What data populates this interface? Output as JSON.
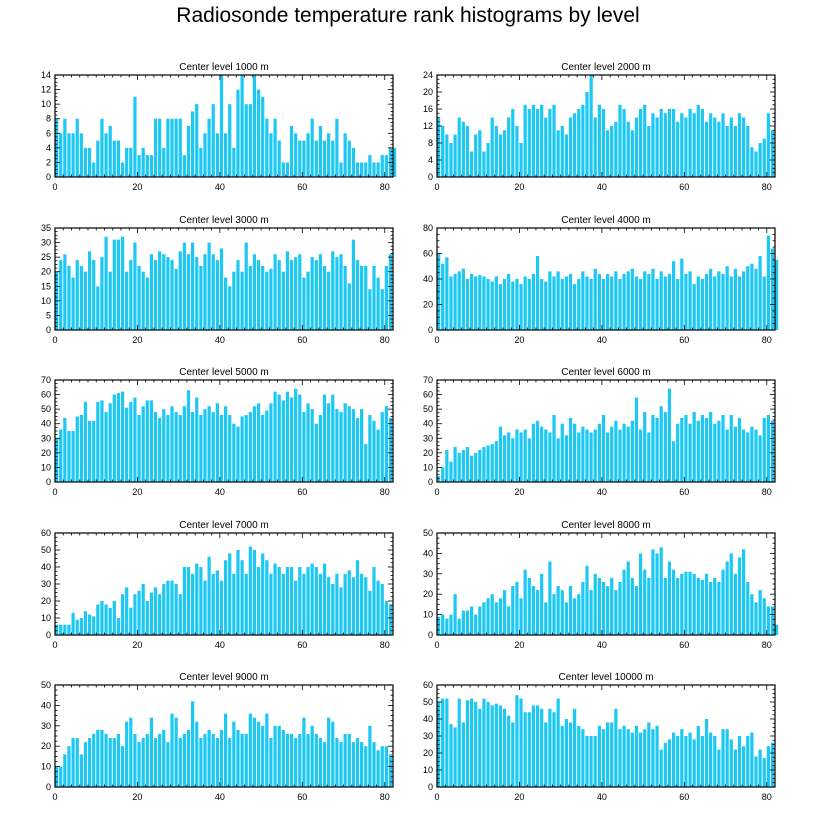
{
  "title": "Radiosonde temperature rank histograms by level",
  "colors": {
    "bar": "#1ec8f5",
    "axis": "#000000",
    "background": "#ffffff"
  },
  "chart_data": [
    {
      "type": "bar",
      "title": "Center level 1000 m",
      "xlim": [
        0,
        82
      ],
      "ylim": [
        0,
        14
      ],
      "xticks": [
        0,
        20,
        40,
        60,
        80
      ],
      "yticks": [
        0,
        2,
        4,
        6,
        8,
        10,
        12,
        14
      ],
      "values": [
        8,
        6,
        8,
        6,
        6,
        8,
        6,
        4,
        4,
        2,
        5,
        8,
        6,
        7,
        5,
        5,
        2,
        4,
        4,
        11,
        3,
        4,
        3,
        3,
        8,
        8,
        4,
        8,
        8,
        8,
        8,
        3,
        7,
        9,
        10,
        4,
        6,
        8,
        10,
        6,
        14,
        6,
        10,
        4,
        12,
        14,
        10,
        10,
        14,
        12,
        11,
        8,
        6,
        8,
        5,
        2,
        2,
        7,
        6,
        5,
        5,
        6,
        8,
        5,
        7,
        5,
        6,
        5,
        8,
        2,
        6,
        5,
        4,
        2,
        2,
        2,
        3,
        2,
        2,
        3,
        3,
        4,
        4
      ]
    },
    {
      "type": "bar",
      "title": "Center level 2000 m",
      "xlim": [
        0,
        82
      ],
      "ylim": [
        0,
        24
      ],
      "xticks": [
        0,
        20,
        40,
        60,
        80
      ],
      "yticks": [
        0,
        4,
        8,
        12,
        16,
        20,
        24
      ],
      "values": [
        14,
        12,
        10,
        8,
        10,
        14,
        13,
        12,
        6,
        10,
        11,
        6,
        8,
        14,
        12,
        10,
        11,
        14,
        16,
        12,
        8,
        17,
        16,
        17,
        16,
        17,
        14,
        16,
        17,
        11,
        12,
        10,
        14,
        15,
        16,
        17,
        20,
        24,
        14,
        17,
        16,
        11,
        12,
        13,
        17,
        16,
        13,
        11,
        14,
        16,
        17,
        12,
        15,
        14,
        16,
        15,
        16,
        16,
        13,
        15,
        14,
        16,
        15,
        17,
        16,
        13,
        15,
        14,
        13,
        15,
        12,
        14,
        12,
        15,
        14,
        12,
        7,
        6,
        8,
        9,
        15,
        11
      ]
    },
    {
      "type": "bar",
      "title": "Center level 3000 m",
      "xlim": [
        0,
        82
      ],
      "ylim": [
        0,
        35
      ],
      "xticks": [
        0,
        20,
        40,
        60,
        80
      ],
      "yticks": [
        0,
        5,
        10,
        15,
        20,
        25,
        30,
        35
      ],
      "values": [
        20,
        24,
        26,
        22,
        18,
        24,
        22,
        20,
        27,
        24,
        15,
        25,
        32,
        20,
        31,
        31,
        32,
        20,
        24,
        30,
        22,
        20,
        18,
        26,
        24,
        27,
        26,
        25,
        24,
        21,
        27,
        30,
        26,
        30,
        25,
        22,
        26,
        30,
        26,
        24,
        28,
        18,
        15,
        20,
        24,
        20,
        30,
        22,
        26,
        24,
        22,
        20,
        21,
        26,
        24,
        20,
        27,
        24,
        25,
        26,
        18,
        20,
        25,
        24,
        26,
        22,
        20,
        27,
        25,
        26,
        22,
        16,
        31,
        24,
        22,
        22,
        14,
        22,
        18,
        14,
        22,
        26
      ]
    },
    {
      "type": "bar",
      "title": "Center level 4000 m",
      "xlim": [
        0,
        82
      ],
      "ylim": [
        0,
        80
      ],
      "xticks": [
        0,
        20,
        40,
        60,
        80
      ],
      "yticks": [
        0,
        20,
        40,
        60,
        80
      ],
      "values": [
        60,
        52,
        57,
        42,
        44,
        46,
        48,
        40,
        44,
        42,
        43,
        42,
        40,
        38,
        42,
        36,
        40,
        44,
        38,
        40,
        36,
        42,
        40,
        44,
        58,
        40,
        38,
        46,
        42,
        46,
        40,
        42,
        44,
        36,
        40,
        46,
        42,
        40,
        48,
        44,
        40,
        44,
        42,
        46,
        40,
        44,
        46,
        48,
        42,
        40,
        46,
        44,
        48,
        40,
        46,
        42,
        44,
        54,
        40,
        56,
        44,
        46,
        36,
        42,
        40,
        44,
        48,
        42,
        46,
        44,
        50,
        42,
        48,
        42,
        46,
        50,
        52,
        48,
        58,
        42,
        74,
        64,
        55
      ]
    },
    {
      "type": "bar",
      "title": "Center level 5000 m",
      "xlim": [
        0,
        82
      ],
      "ylim": [
        0,
        70
      ],
      "xticks": [
        0,
        20,
        40,
        60,
        80
      ],
      "yticks": [
        0,
        10,
        20,
        30,
        40,
        50,
        60,
        70
      ],
      "values": [
        30,
        36,
        44,
        35,
        35,
        45,
        46,
        55,
        42,
        42,
        55,
        56,
        48,
        54,
        60,
        61,
        62,
        51,
        55,
        58,
        46,
        52,
        56,
        56,
        48,
        44,
        50,
        46,
        52,
        48,
        46,
        52,
        63,
        48,
        58,
        46,
        50,
        52,
        48,
        54,
        46,
        52,
        46,
        40,
        38,
        45,
        46,
        48,
        52,
        54,
        46,
        49,
        54,
        62,
        60,
        56,
        62,
        58,
        64,
        60,
        48,
        54,
        50,
        40,
        46,
        60,
        54,
        60,
        50,
        48,
        54,
        52,
        50,
        44,
        50,
        26,
        46,
        42,
        36,
        48,
        52,
        44
      ]
    },
    {
      "type": "bar",
      "title": "Center level 6000 m",
      "xlim": [
        0,
        82
      ],
      "ylim": [
        0,
        70
      ],
      "xticks": [
        0,
        20,
        40,
        60,
        80
      ],
      "yticks": [
        0,
        10,
        20,
        30,
        40,
        50,
        60,
        70
      ],
      "values": [
        4,
        10,
        22,
        14,
        24,
        20,
        22,
        24,
        18,
        20,
        22,
        24,
        25,
        26,
        28,
        38,
        32,
        34,
        30,
        36,
        34,
        36,
        30,
        40,
        42,
        38,
        36,
        34,
        46,
        30,
        40,
        32,
        44,
        40,
        34,
        38,
        36,
        34,
        36,
        40,
        46,
        34,
        38,
        42,
        36,
        40,
        38,
        42,
        58,
        36,
        48,
        34,
        46,
        44,
        52,
        48,
        64,
        28,
        40,
        44,
        46,
        40,
        48,
        42,
        46,
        44,
        48,
        40,
        42,
        46,
        36,
        46,
        38,
        44,
        36,
        34,
        38,
        36,
        32,
        44,
        46,
        42
      ]
    },
    {
      "type": "bar",
      "title": "Center level 7000 m",
      "xlim": [
        0,
        82
      ],
      "ylim": [
        0,
        60
      ],
      "xticks": [
        0,
        20,
        40,
        60,
        80
      ],
      "yticks": [
        0,
        10,
        20,
        30,
        40,
        50,
        60
      ],
      "values": [
        6,
        6,
        6,
        6,
        13,
        9,
        10,
        14,
        12,
        11,
        18,
        20,
        18,
        16,
        20,
        10,
        24,
        28,
        16,
        24,
        26,
        30,
        20,
        25,
        28,
        24,
        30,
        32,
        32,
        30,
        24,
        40,
        40,
        36,
        42,
        40,
        32,
        46,
        36,
        38,
        32,
        44,
        48,
        36,
        50,
        44,
        36,
        52,
        50,
        40,
        48,
        44,
        36,
        42,
        40,
        36,
        40,
        40,
        32,
        40,
        36,
        40,
        42,
        40,
        36,
        42,
        34,
        30,
        36,
        28,
        36,
        38,
        34,
        44,
        36,
        34,
        26,
        40,
        32,
        30,
        20,
        18
      ]
    },
    {
      "type": "bar",
      "title": "Center level 8000 m",
      "xlim": [
        0,
        82
      ],
      "ylim": [
        0,
        50
      ],
      "xticks": [
        0,
        20,
        40,
        60,
        80
      ],
      "yticks": [
        0,
        10,
        20,
        30,
        40,
        50
      ],
      "values": [
        9,
        10,
        8,
        10,
        20,
        8,
        12,
        12,
        14,
        10,
        14,
        16,
        18,
        20,
        16,
        18,
        22,
        14,
        24,
        26,
        18,
        32,
        28,
        24,
        22,
        30,
        16,
        36,
        20,
        24,
        22,
        16,
        24,
        18,
        20,
        26,
        34,
        22,
        30,
        28,
        26,
        24,
        28,
        22,
        26,
        32,
        36,
        28,
        24,
        40,
        32,
        28,
        42,
        40,
        43,
        28,
        36,
        32,
        28,
        30,
        31,
        31,
        30,
        28,
        27,
        30,
        26,
        28,
        26,
        32,
        36,
        40,
        30,
        38,
        42,
        26,
        20,
        16,
        22,
        18,
        14,
        14,
        5
      ]
    },
    {
      "type": "bar",
      "title": "Center level 9000 m",
      "xlim": [
        0,
        82
      ],
      "ylim": [
        0,
        50
      ],
      "xticks": [
        0,
        20,
        40,
        60,
        80
      ],
      "yticks": [
        0,
        10,
        20,
        30,
        40,
        50
      ],
      "values": [
        10,
        10,
        16,
        20,
        24,
        24,
        16,
        22,
        24,
        26,
        28,
        28,
        26,
        24,
        24,
        26,
        20,
        32,
        34,
        26,
        22,
        24,
        26,
        34,
        24,
        26,
        28,
        22,
        36,
        34,
        24,
        26,
        28,
        42,
        32,
        24,
        26,
        28,
        26,
        24,
        28,
        36,
        24,
        32,
        28,
        26,
        26,
        36,
        34,
        32,
        30,
        36,
        24,
        30,
        30,
        28,
        26,
        26,
        24,
        26,
        34,
        26,
        30,
        26,
        24,
        22,
        34,
        32,
        24,
        22,
        26,
        26,
        22,
        24,
        22,
        20,
        30,
        22,
        18,
        20,
        20,
        16
      ]
    },
    {
      "type": "bar",
      "title": "Center level 10000 m",
      "xlim": [
        0,
        82
      ],
      "ylim": [
        0,
        60
      ],
      "xticks": [
        0,
        20,
        40,
        60,
        80
      ],
      "yticks": [
        0,
        10,
        20,
        30,
        40,
        50,
        60
      ],
      "values": [
        50,
        52,
        52,
        37,
        35,
        52,
        38,
        51,
        52,
        50,
        46,
        52,
        50,
        48,
        49,
        48,
        46,
        42,
        38,
        54,
        52,
        44,
        44,
        48,
        48,
        46,
        38,
        46,
        44,
        52,
        36,
        40,
        38,
        46,
        36,
        34,
        30,
        30,
        30,
        36,
        34,
        38,
        38,
        46,
        34,
        36,
        34,
        32,
        36,
        32,
        34,
        38,
        34,
        36,
        22,
        26,
        28,
        32,
        30,
        34,
        30,
        32,
        28,
        36,
        30,
        40,
        32,
        30,
        22,
        34,
        34,
        28,
        22,
        30,
        24,
        30,
        32,
        18,
        22,
        17,
        24,
        26
      ]
    }
  ]
}
